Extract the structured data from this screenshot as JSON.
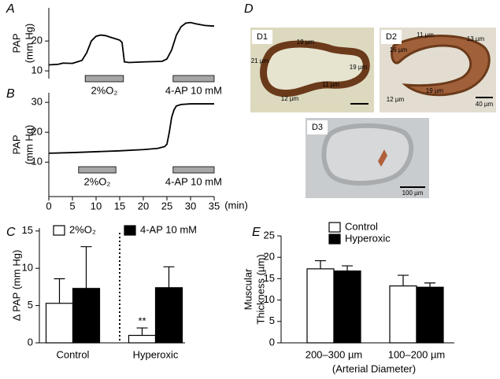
{
  "chart_data": [
    {
      "type": "line",
      "panel_label": "A",
      "y_label": [
        "PAP",
        "(mm Hg)"
      ],
      "xlim": [
        0,
        35
      ],
      "ylim": [
        7.4,
        31.1
      ],
      "yticks": [
        10,
        20
      ],
      "x": [
        0,
        2,
        3,
        5,
        7,
        8,
        8.5,
        9,
        10,
        11,
        12,
        13,
        14,
        15,
        15.5,
        16,
        17,
        20,
        24,
        25,
        26,
        27,
        28,
        29,
        30,
        31,
        33,
        35
      ],
      "series": [
        {
          "color": "#000000",
          "values": [
            12,
            12.2,
            12.6,
            12.5,
            13.5,
            16,
            18,
            20,
            21.6,
            22,
            21.8,
            21.3,
            20.8,
            20.3,
            19.5,
            13,
            12.8,
            13,
            13.2,
            14,
            17,
            22,
            24.8,
            26,
            26.2,
            25.8,
            25.2,
            25
          ]
        }
      ],
      "events": [
        {
          "label": "2%O₂",
          "start": 7.7,
          "end": 15.8
        },
        {
          "label": "4-AP 10 mM",
          "start": 26.3,
          "end": 35
        }
      ]
    },
    {
      "type": "line",
      "panel_label": "B",
      "y_label": [
        "PAP",
        "(mm Hg)"
      ],
      "x_label": "(min)",
      "xlim": [
        0,
        35
      ],
      "xticks": [
        0,
        5,
        10,
        15,
        20,
        25,
        30,
        35
      ],
      "ylim": [
        -1.5,
        33.2
      ],
      "yticks": [
        10,
        20,
        30
      ],
      "x": [
        0,
        5,
        10,
        15,
        20,
        23,
        24.5,
        25,
        25.5,
        26,
        26.5,
        27,
        28,
        30,
        35
      ],
      "series": [
        {
          "color": "#000000",
          "values": [
            13,
            13.2,
            13.5,
            13.8,
            14.2,
            14.6,
            15.2,
            16,
            20,
            25,
            27.5,
            28.8,
            29.3,
            29.5,
            29.5
          ]
        }
      ],
      "events": [
        {
          "label": "2%O₂",
          "start": 6.3,
          "end": 14.2
        },
        {
          "label": "4-AP 10 mM",
          "start": 26.3,
          "end": 35
        }
      ]
    },
    {
      "type": "bar",
      "panel_label": "C",
      "y_label": [
        "Δ PAP (mm Hg)"
      ],
      "categories": [
        "Control",
        "Hyperoxic"
      ],
      "ylim": [
        0,
        15.4
      ],
      "yticks": [
        0,
        5,
        10,
        15
      ],
      "series": [
        {
          "name": "2%O₂",
          "color": "#ffffff",
          "values": [
            5.3,
            1.0
          ],
          "errors": [
            3.3,
            1.0
          ],
          "annotations": [
            null,
            "**"
          ]
        },
        {
          "name": "4-AP 10 mM",
          "color": "#000000",
          "values": [
            7.3,
            7.4
          ],
          "errors": [
            5.6,
            2.8
          ]
        }
      ]
    },
    {
      "type": "bar",
      "panel_label": "E",
      "y_label": [
        "Muscular",
        "Thickness (µm)"
      ],
      "x_label": "(Arterial Diameter)",
      "categories": [
        "200–300 µm",
        "100–200 µm"
      ],
      "ylim": [
        0,
        25
      ],
      "yticks": [
        0,
        5,
        10,
        15,
        20,
        25
      ],
      "series": [
        {
          "name": "Control",
          "color": "#ffffff",
          "values": [
            17.3,
            13.3
          ],
          "errors": [
            1.9,
            2.5
          ]
        },
        {
          "name": "Hyperoxic",
          "color": "#000000",
          "values": [
            16.8,
            13.0
          ],
          "errors": [
            1.2,
            1.0
          ]
        }
      ]
    }
  ],
  "micrographs": {
    "panel_label": "D",
    "images": [
      {
        "label": "D1",
        "measurements": [
          "19 µm",
          "21 µm",
          "19 µm",
          "11 µm",
          "12 µm"
        ]
      },
      {
        "label": "D2",
        "measurements": [
          "11 µm",
          "13 µm",
          "16 µm",
          "12 µm",
          "19 µm"
        ],
        "scale_bar": "40 µm"
      },
      {
        "label": "D3",
        "scale_bar": "100 µm"
      }
    ]
  }
}
